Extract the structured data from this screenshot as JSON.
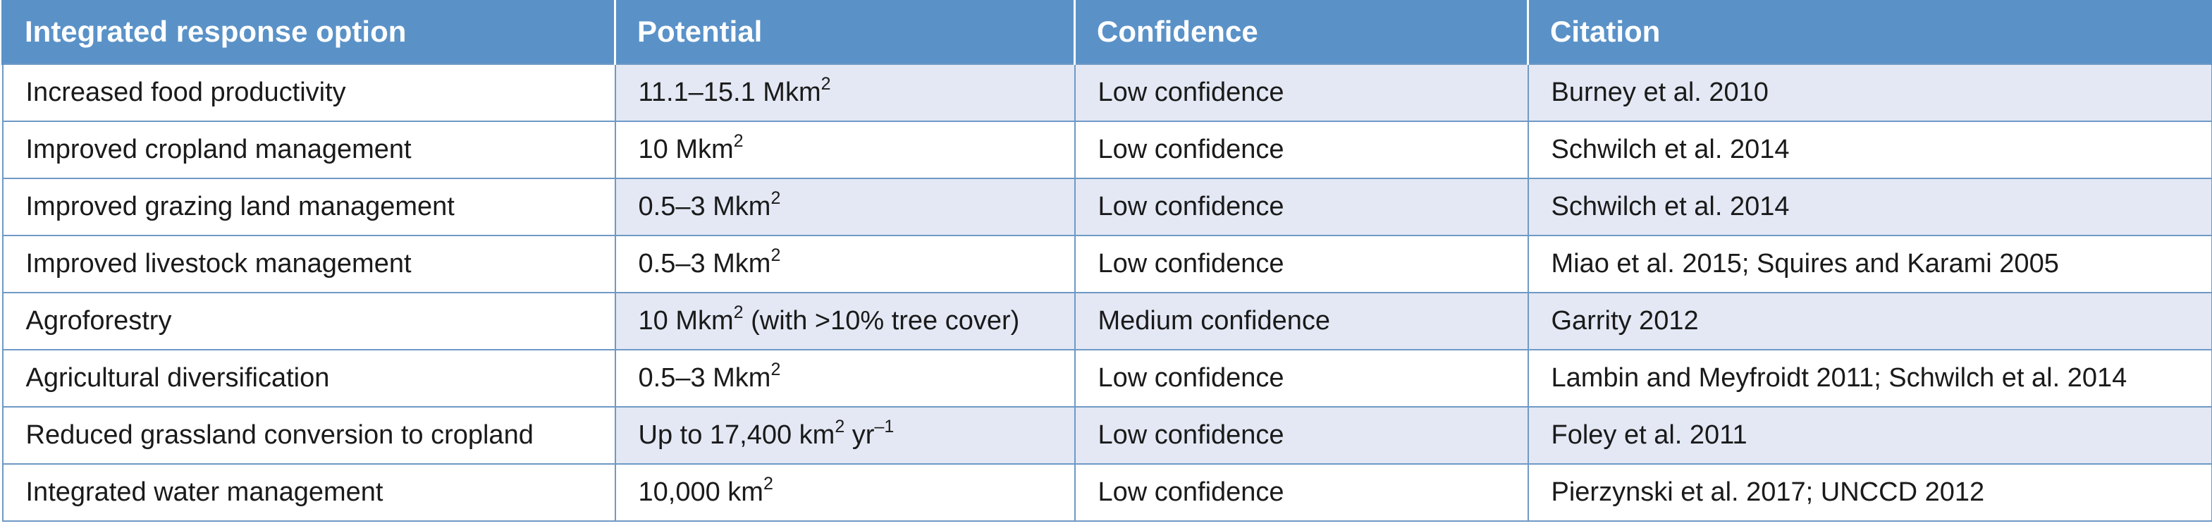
{
  "table": {
    "headers": [
      "Integrated response option",
      "Potential",
      "Confidence",
      "Citation"
    ],
    "rows": [
      {
        "option": "Increased food productivity",
        "potential": {
          "value": "11.1–15.1 Mkm",
          "sup": "2",
          "tail": "",
          "sup2": ""
        },
        "confidence": "Low confidence",
        "citation": "Burney et al. 2010"
      },
      {
        "option": "Improved cropland management",
        "potential": {
          "value": "10 Mkm",
          "sup": "2",
          "tail": "",
          "sup2": ""
        },
        "confidence": "Low confidence",
        "citation": "Schwilch et al. 2014"
      },
      {
        "option": "Improved grazing land management",
        "potential": {
          "value": "0.5–3 Mkm",
          "sup": "2",
          "tail": "",
          "sup2": ""
        },
        "confidence": "Low confidence",
        "citation": "Schwilch et al. 2014"
      },
      {
        "option": "Improved livestock management",
        "potential": {
          "value": "0.5–3 Mkm",
          "sup": "2",
          "tail": "",
          "sup2": ""
        },
        "confidence": "Low confidence",
        "citation": "Miao et al. 2015; Squires and Karami 2005"
      },
      {
        "option": "Agroforestry",
        "potential": {
          "value": "10 Mkm",
          "sup": "2",
          "tail": " (with >10% tree cover)",
          "sup2": ""
        },
        "confidence": "Medium confidence",
        "citation": "Garrity 2012"
      },
      {
        "option": "Agricultural diversification",
        "potential": {
          "value": "0.5–3 Mkm",
          "sup": "2",
          "tail": "",
          "sup2": ""
        },
        "confidence": "Low confidence",
        "citation": "Lambin and Meyfroidt 2011; Schwilch et al. 2014"
      },
      {
        "option": "Reduced grassland conversion to cropland",
        "potential": {
          "value": "Up to 17,400 km",
          "sup": "2",
          "tail": " yr",
          "sup2": "–1"
        },
        "confidence": "Low confidence",
        "citation": "Foley et al. 2011"
      },
      {
        "option": "Integrated water management",
        "potential": {
          "value": "10,000 km",
          "sup": "2",
          "tail": "",
          "sup2": ""
        },
        "confidence": "Low confidence",
        "citation": "Pierzynski et al. 2017; UNCCD 2012"
      }
    ]
  },
  "colors": {
    "header_bg": "#5a92c8",
    "shaded_cell_bg": "#e3e8f4",
    "grid_line": "#6f99c5"
  }
}
